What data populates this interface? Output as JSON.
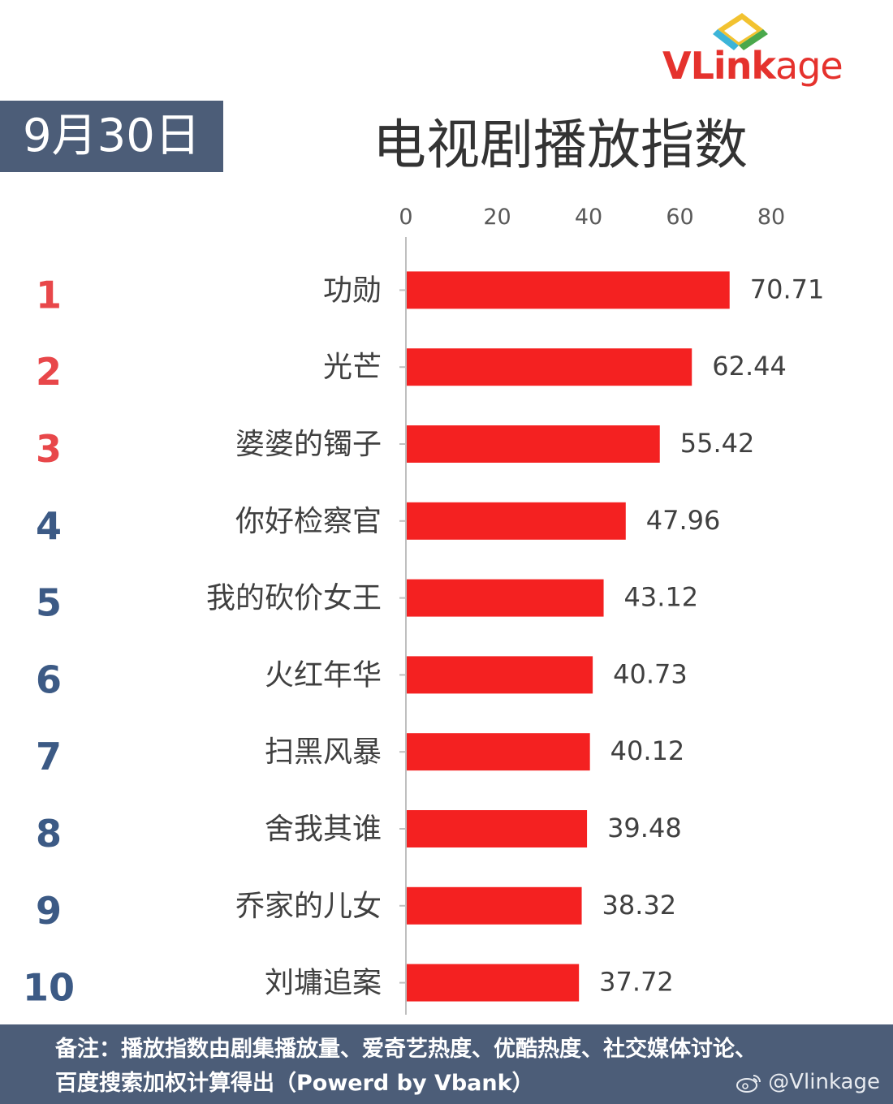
{
  "logo": {
    "v": "V",
    "rest": "Link",
    "age": "age"
  },
  "date": "9月30日",
  "title": "电视剧播放指数",
  "colors": {
    "bar": "#f42121",
    "header_bg": "#4c5d78",
    "rank_top": "#e8474a",
    "rank_other": "#3c5a85"
  },
  "chart_data": {
    "type": "bar",
    "orientation": "horizontal",
    "xlim": [
      0,
      80
    ],
    "x_ticks": [
      "0",
      "20",
      "40",
      "60",
      "80"
    ],
    "ranks": [
      "1",
      "2",
      "3",
      "4",
      "5",
      "6",
      "7",
      "8",
      "9",
      "10"
    ],
    "categories": [
      "功勋",
      "光芒",
      "婆婆的镯子",
      "你好检察官",
      "我的砍价女王",
      "火红年华",
      "扫黑风暴",
      "舍我其谁",
      "乔家的儿女",
      "刘墉追案"
    ],
    "values": [
      70.71,
      62.44,
      55.42,
      47.96,
      43.12,
      40.73,
      40.12,
      39.48,
      38.32,
      37.72
    ],
    "value_labels": [
      "70.71",
      "62.44",
      "55.42",
      "47.96",
      "43.12",
      "40.73",
      "40.12",
      "39.48",
      "38.32",
      "37.72"
    ]
  },
  "footer": {
    "note_line1": "备注：播放指数由剧集播放量、爱奇艺热度、优酷热度、社交媒体讨论、",
    "note_line2": "百度搜索加权计算得出（Powerd by Vbank）",
    "handle": "@Vlinkage",
    "icon": "weibo-icon"
  }
}
